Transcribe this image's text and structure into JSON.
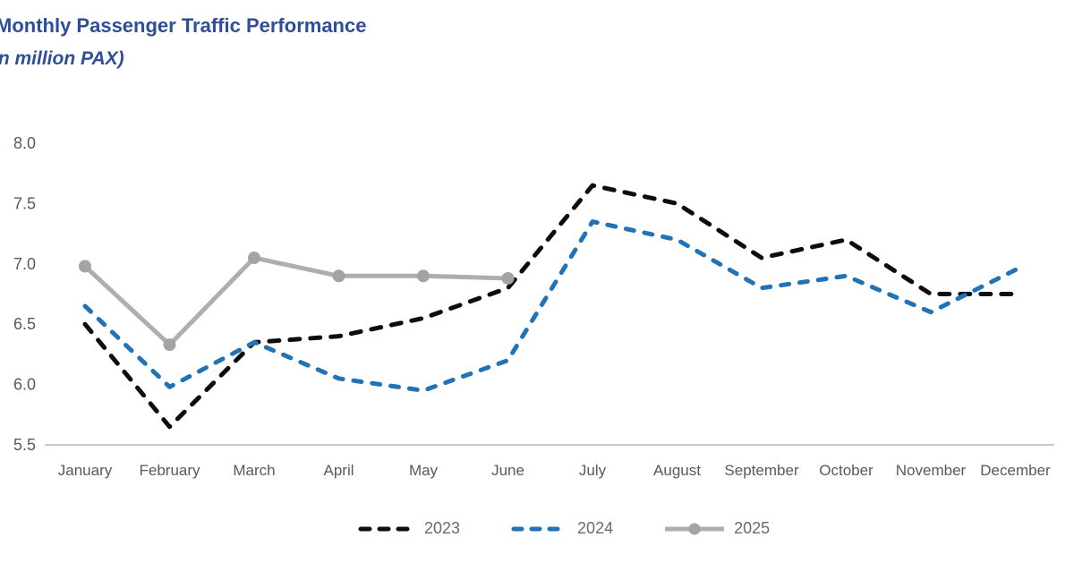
{
  "header": {
    "title": "Monthly Passenger Traffic Performance",
    "subtitle": "(in million PAX)"
  },
  "chart_data": {
    "type": "line",
    "title": "Monthly Passenger Traffic Performance",
    "subtitle": "(in million PAX)",
    "categories": [
      "January",
      "February",
      "March",
      "April",
      "May",
      "June",
      "July",
      "August",
      "September",
      "October",
      "November",
      "December"
    ],
    "series": [
      {
        "name": "2023",
        "color": "#0d0d0d",
        "style": "dashed",
        "values": [
          6.5,
          5.65,
          6.35,
          6.4,
          6.55,
          6.8,
          7.65,
          7.5,
          7.05,
          7.2,
          6.75,
          6.75
        ]
      },
      {
        "name": "2024",
        "color": "#2173b8",
        "style": "dashed",
        "values": [
          6.65,
          5.98,
          6.35,
          6.05,
          5.95,
          6.2,
          7.35,
          7.2,
          6.8,
          6.9,
          6.6,
          6.95
        ]
      },
      {
        "name": "2025",
        "color": "#aeaeae",
        "marker_color": "#a3a3a3",
        "style": "solid-marker",
        "values": [
          6.98,
          6.33,
          7.05,
          6.9,
          6.9,
          6.88,
          null,
          null,
          null,
          null,
          null,
          null
        ]
      }
    ],
    "ylim": [
      5.5,
      8.0
    ],
    "yticks": [
      "8.0",
      "7.5",
      "7.0",
      "6.5",
      "6.0",
      "5.5"
    ],
    "grid": false,
    "legend_position": "bottom"
  },
  "colors": {
    "title_text": "#2f4e97",
    "axis_text": "#595959",
    "axis_line": "#c9c9c9"
  }
}
